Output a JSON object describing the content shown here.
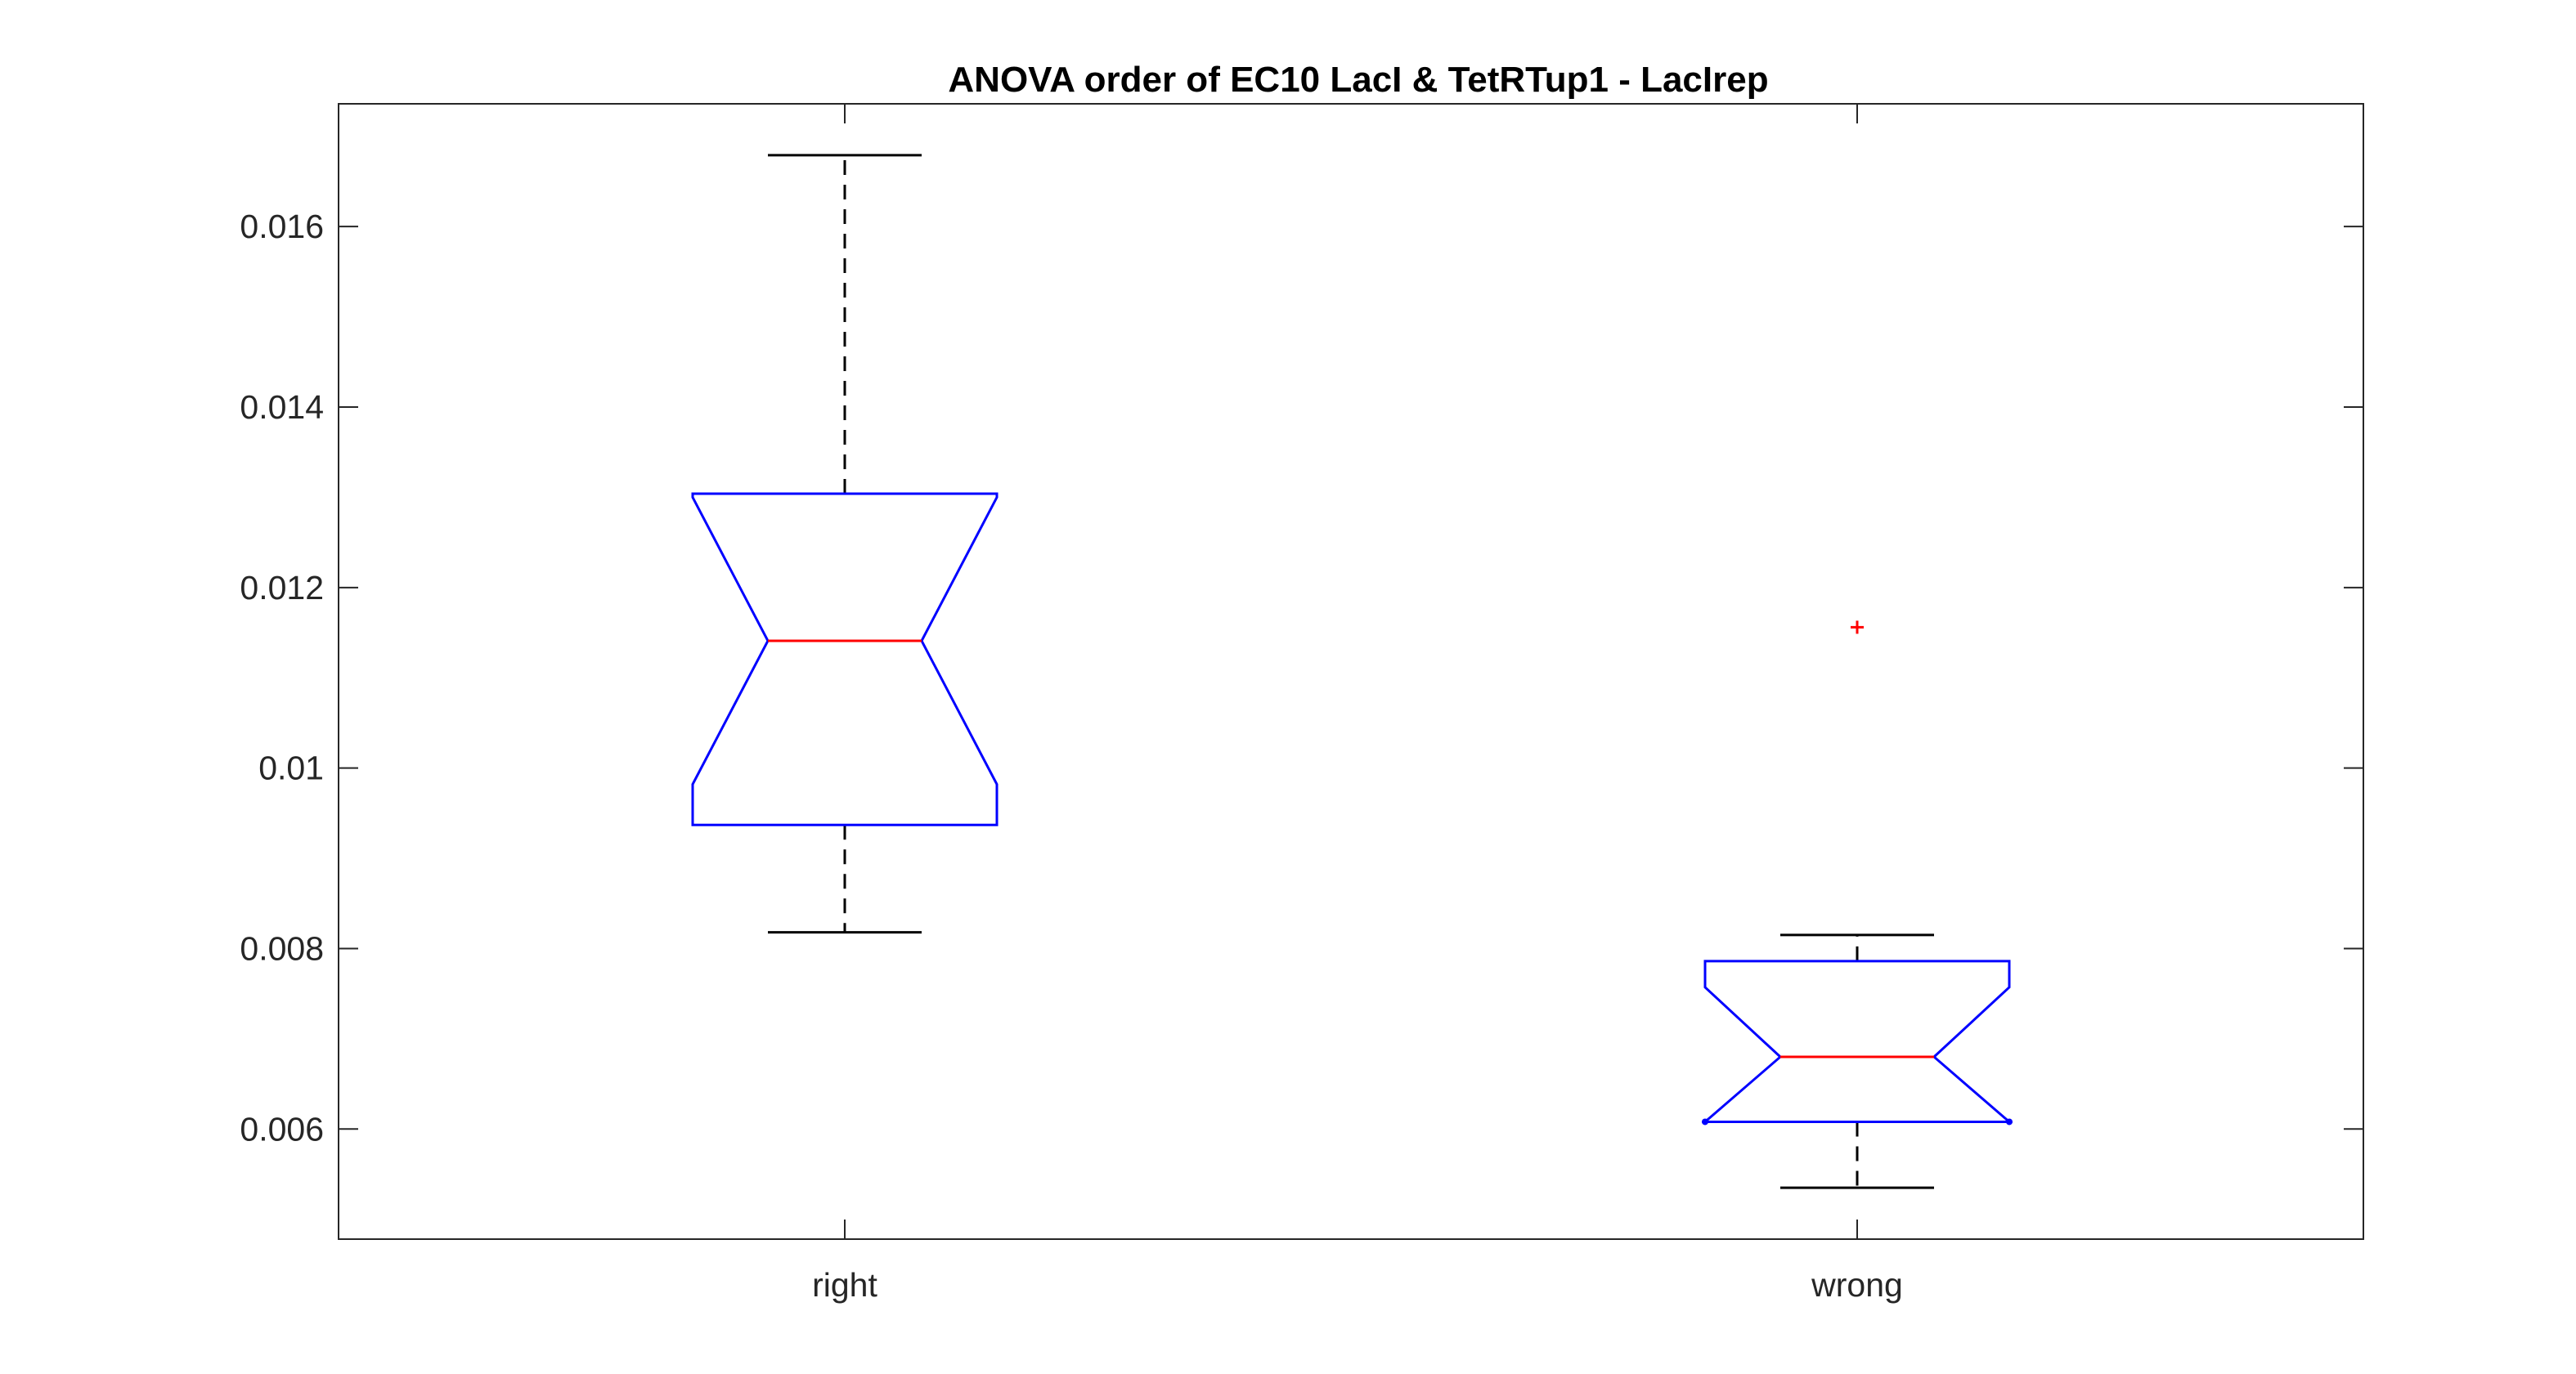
{
  "chart_data": {
    "type": "boxplot",
    "title": "ANOVA order of EC10 LacI & TetRTup1 - LacIrep",
    "xlabel": "",
    "ylabel": "",
    "categories": [
      "right",
      "wrong"
    ],
    "ylim": [
      0.00478,
      0.01736
    ],
    "yticks": [
      0.006,
      0.008,
      0.01,
      0.012,
      0.014,
      0.016
    ],
    "ytick_labels": [
      "0.006",
      "0.008",
      "0.01",
      "0.012",
      "0.014",
      "0.016"
    ],
    "notched": true,
    "grid": false,
    "boxes": [
      {
        "category": "right",
        "whisker_low": 0.00818,
        "q1": 0.00937,
        "notch_low": 0.00982,
        "median": 0.01141,
        "notch_high": 0.013,
        "q3": 0.01304,
        "whisker_high": 0.01679,
        "outliers": []
      },
      {
        "category": "wrong",
        "whisker_low": 0.00535,
        "q1": 0.00608,
        "notch_low": 0.00608,
        "median": 0.0068,
        "notch_high": 0.00757,
        "q3": 0.00786,
        "whisker_high": 0.00815,
        "outliers": [
          0.01156
        ]
      }
    ],
    "colors": {
      "box": "#0000ff",
      "median": "#ff0000",
      "whisker": "#000000",
      "outlier": "#ff0000",
      "axes": "#262626"
    }
  }
}
